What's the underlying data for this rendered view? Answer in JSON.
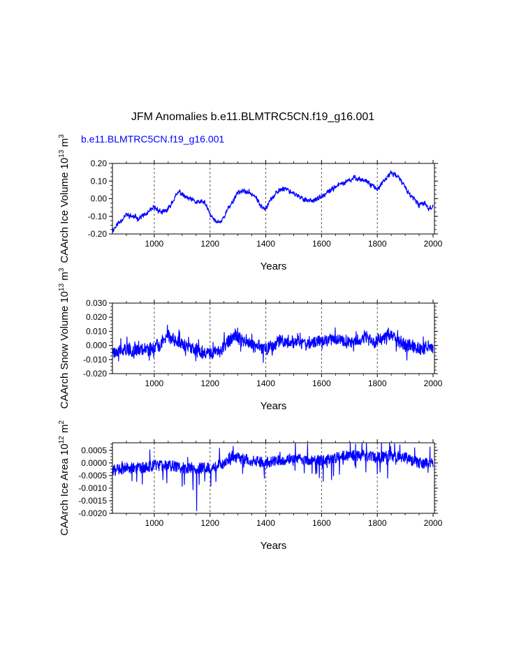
{
  "figure": {
    "main_title": "JFM Anomalies b.e11.BLMTRC5CN.f19_g16.001",
    "subtitle": "b.e11.BLMTRC5CN.f19_g16.001",
    "subtitle_color": "#0000ff",
    "line_color": "#0000ff"
  },
  "chart_data": [
    {
      "type": "line",
      "panel": "ice-volume",
      "ylabel": "CAArch Ice Volume 10",
      "ylabel_exp": "13",
      "ylabel_unit": " m",
      "ylabel_unit_exp": "3",
      "xlabel": "Years",
      "xlim": [
        850,
        2005
      ],
      "ylim": [
        -0.2,
        0.2
      ],
      "x_ticks": [
        1000,
        1200,
        1400,
        1600,
        1800,
        2000
      ],
      "x_tick_labels": [
        "1000",
        "1200",
        "1400",
        "1600",
        "1800",
        "2000"
      ],
      "y_ticks": [
        -0.2,
        -0.1,
        0.0,
        0.1,
        0.2
      ],
      "y_tick_labels": [
        "-0.20",
        "-0.10",
        "0.00",
        "0.10",
        "0.20"
      ],
      "y_minor_step": 0.025,
      "vertical_dashed_lines_at": [
        1000,
        1200,
        1400,
        1600,
        1800
      ],
      "series": [
        {
          "name": "b.e11.BLMTRC5CN.f19_g16.001",
          "kind": "slow",
          "noise_seed": 11,
          "noise_amplitude": 0.012,
          "anchor_years": [
            850,
            870,
            900,
            940,
            970,
            1000,
            1030,
            1050,
            1070,
            1090,
            1110,
            1150,
            1180,
            1200,
            1220,
            1240,
            1260,
            1280,
            1300,
            1330,
            1360,
            1380,
            1400,
            1420,
            1450,
            1470,
            1500,
            1530,
            1560,
            1590,
            1620,
            1650,
            1680,
            1700,
            1720,
            1740,
            1760,
            1780,
            1800,
            1820,
            1850,
            1870,
            1890,
            1910,
            1930,
            1950,
            1970,
            1985,
            2000
          ],
          "anchor_values": [
            -0.18,
            -0.14,
            -0.09,
            -0.11,
            -0.09,
            -0.05,
            -0.08,
            -0.06,
            0.0,
            0.04,
            0.01,
            -0.02,
            -0.02,
            -0.09,
            -0.13,
            -0.13,
            -0.07,
            -0.02,
            0.04,
            0.04,
            0.02,
            -0.04,
            -0.05,
            0.0,
            0.05,
            0.06,
            0.03,
            0.0,
            -0.01,
            0.0,
            0.03,
            0.07,
            0.09,
            0.1,
            0.12,
            0.11,
            0.1,
            0.08,
            0.05,
            0.09,
            0.15,
            0.13,
            0.09,
            0.04,
            0.0,
            -0.04,
            -0.02,
            -0.06,
            -0.04
          ]
        }
      ]
    },
    {
      "type": "line",
      "panel": "snow-volume",
      "ylabel": "CAArch Snow Volume 10",
      "ylabel_exp": "13",
      "ylabel_unit": " m",
      "ylabel_unit_exp": "3",
      "xlabel": "Years",
      "xlim": [
        850,
        2005
      ],
      "ylim": [
        -0.02,
        0.03
      ],
      "x_ticks": [
        1000,
        1200,
        1400,
        1600,
        1800,
        2000
      ],
      "x_tick_labels": [
        "1000",
        "1200",
        "1400",
        "1600",
        "1800",
        "2000"
      ],
      "y_ticks": [
        -0.02,
        -0.01,
        0.0,
        0.01,
        0.02,
        0.03
      ],
      "y_tick_labels": [
        "-0.020",
        "-0.010",
        "0.000",
        "0.010",
        "0.020",
        "0.030"
      ],
      "y_minor_step": 0.0025,
      "vertical_dashed_lines_at": [
        1000,
        1200,
        1400,
        1600,
        1800
      ],
      "series": [
        {
          "name": "b.e11.BLMTRC5CN.f19_g16.001",
          "kind": "noisy",
          "noise_seed": 23,
          "noise_amplitude": 0.0042,
          "anchor_years": [
            850,
            900,
            950,
            1000,
            1030,
            1050,
            1080,
            1120,
            1160,
            1200,
            1240,
            1270,
            1290,
            1320,
            1360,
            1400,
            1430,
            1460,
            1500,
            1550,
            1600,
            1630,
            1660,
            1700,
            1730,
            1760,
            1790,
            1810,
            1840,
            1860,
            1880,
            1920,
            1960,
            2000
          ],
          "anchor_values": [
            -0.004,
            -0.003,
            -0.003,
            -0.002,
            0.002,
            0.007,
            0.003,
            -0.002,
            -0.004,
            -0.006,
            -0.003,
            0.004,
            0.007,
            0.004,
            0.0,
            -0.003,
            0.001,
            0.003,
            0.002,
            0.001,
            0.003,
            0.005,
            0.004,
            0.003,
            0.004,
            0.007,
            0.002,
            0.004,
            0.009,
            0.006,
            0.002,
            -0.001,
            -0.002,
            -0.002
          ]
        }
      ]
    },
    {
      "type": "line",
      "panel": "ice-area",
      "ylabel": "CAArch Ice Area 10",
      "ylabel_exp": "12",
      "ylabel_unit": " m",
      "ylabel_unit_exp": "2",
      "xlabel": "Years",
      "xlim": [
        850,
        2005
      ],
      "ylim": [
        -0.002,
        0.0008
      ],
      "x_ticks": [
        1000,
        1200,
        1400,
        1600,
        1800,
        2000
      ],
      "x_tick_labels": [
        "1000",
        "1200",
        "1400",
        "1600",
        "1800",
        "2000"
      ],
      "y_ticks": [
        -0.002,
        -0.0015,
        -0.001,
        -0.0005,
        0.0,
        0.0005
      ],
      "y_tick_labels": [
        "-0.0020",
        "-0.0015",
        "-0.0010",
        "-0.0005",
        "0.0000",
        "0.0005"
      ],
      "y_minor_step": 0.000125,
      "vertical_dashed_lines_at": [
        1000,
        1200,
        1400,
        1600,
        1800
      ],
      "series": [
        {
          "name": "b.e11.BLMTRC5CN.f19_g16.001",
          "kind": "spiky",
          "noise_seed": 37,
          "noise_amplitude": 0.00022,
          "spike_year": 1152,
          "spike_value": -0.0019,
          "anchor_years": [
            850,
            900,
            950,
            1000,
            1050,
            1100,
            1150,
            1200,
            1250,
            1280,
            1300,
            1350,
            1400,
            1450,
            1500,
            1550,
            1600,
            1650,
            1700,
            1750,
            1800,
            1850,
            1900,
            1950,
            2000
          ],
          "anchor_values": [
            -0.0003,
            -0.0002,
            -0.0002,
            -0.0001,
            -0.0001,
            -0.0002,
            -0.0002,
            -0.0002,
            0.0,
            0.0003,
            0.0002,
            0.0001,
            0.0,
            0.0001,
            0.0002,
            0.0001,
            0.0001,
            0.0002,
            0.0003,
            0.0003,
            0.0002,
            0.0003,
            0.0002,
            0.0,
            0.0
          ]
        }
      ]
    }
  ]
}
